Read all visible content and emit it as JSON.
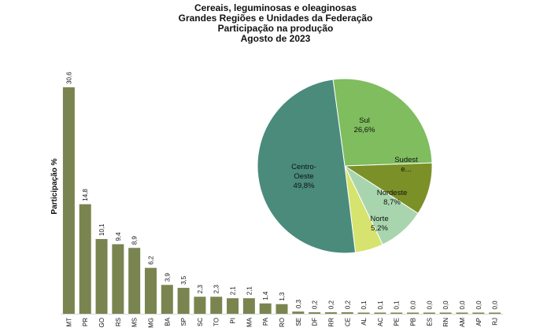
{
  "header": {
    "title": "Cereais, leguminosas e oleaginosas",
    "subtitle1": "Grandes Regiões e Unidades da Federação",
    "subtitle2": "Participação na produção",
    "subtitle3": "Agosto de 2023"
  },
  "chart_data": [
    {
      "type": "bar",
      "ylabel": "Participação %",
      "bar_color": "#7a8450",
      "categories": [
        "MT",
        "PR",
        "GO",
        "RS",
        "MS",
        "MG",
        "BA",
        "SP",
        "SC",
        "TO",
        "PI",
        "MA",
        "PA",
        "RO",
        "SE",
        "DF",
        "RR",
        "CE",
        "AL",
        "AC",
        "PE",
        "PB",
        "ES",
        "RN",
        "AM",
        "AP",
        "RJ"
      ],
      "values": [
        30.6,
        14.8,
        10.1,
        9.4,
        8.9,
        6.2,
        3.9,
        3.5,
        2.3,
        2.3,
        2.1,
        2.1,
        1.4,
        1.3,
        0.3,
        0.2,
        0.2,
        0.2,
        0.1,
        0.1,
        0.1,
        0.0,
        0.0,
        0.0,
        0.0,
        0.0,
        0.0
      ],
      "value_labels": [
        "30,6",
        "14,8",
        "10,1",
        "9,4",
        "8,9",
        "6,2",
        "3,9",
        "3,5",
        "2,3",
        "2,3",
        "2,1",
        "2,1",
        "1,4",
        "1,3",
        "0,3",
        "0,2",
        "0,2",
        "0,2",
        "0,1",
        "0,1",
        "0,1",
        "0,0",
        "0,0",
        "0,0",
        "0,0",
        "0,0",
        "0,0"
      ],
      "ylim": [
        0,
        30.6
      ]
    },
    {
      "type": "pie",
      "slices": [
        {
          "name": "Sul",
          "value": 26.6,
          "label": [
            "Sul",
            "26,6%"
          ],
          "color": "#7fbd5e"
        },
        {
          "name": "Sudeste",
          "value": 9.7,
          "label": [
            "Sudest",
            "e..."
          ],
          "color": "#7b9027"
        },
        {
          "name": "Nordeste",
          "value": 8.7,
          "label": [
            "Nordeste",
            "8,7%"
          ],
          "color": "#a8d5ad"
        },
        {
          "name": "Norte",
          "value": 5.2,
          "label": [
            "Norte",
            "5,2%"
          ],
          "color": "#d6e36e"
        },
        {
          "name": "Centro-Oeste",
          "value": 49.8,
          "label": [
            "Centro-",
            "Oeste",
            "49,8%"
          ],
          "color": "#4a8b7c"
        }
      ]
    }
  ]
}
